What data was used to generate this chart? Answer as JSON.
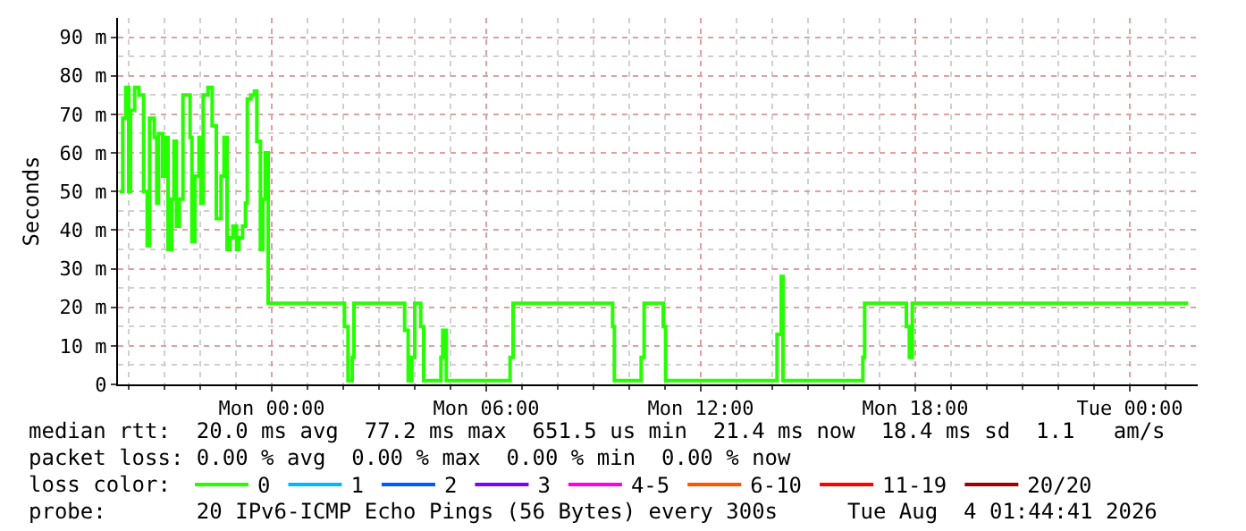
{
  "chart_data": {
    "type": "step",
    "ylabel": "Seconds",
    "x": [
      "2026-08-02T19:45",
      "2026-08-02T19:50",
      "2026-08-02T19:55",
      "2026-08-02T20:00",
      "2026-08-02T20:03",
      "2026-08-02T20:10",
      "2026-08-02T20:17",
      "2026-08-02T20:25",
      "2026-08-02T20:31",
      "2026-08-02T20:35",
      "2026-08-02T20:43",
      "2026-08-02T20:47",
      "2026-08-02T20:50",
      "2026-08-02T20:57",
      "2026-08-02T21:01",
      "2026-08-02T21:06",
      "2026-08-02T21:12",
      "2026-08-02T21:16",
      "2026-08-02T21:20",
      "2026-08-02T21:25",
      "2026-08-02T21:31",
      "2026-08-02T21:38",
      "2026-08-02T21:43",
      "2026-08-02T21:46",
      "2026-08-02T21:51",
      "2026-08-02T21:58",
      "2026-08-02T22:01",
      "2026-08-02T22:05",
      "2026-08-02T22:13",
      "2026-08-02T22:20",
      "2026-08-02T22:27",
      "2026-08-02T22:35",
      "2026-08-02T22:40",
      "2026-08-02T22:45",
      "2026-08-02T22:50",
      "2026-08-02T22:55",
      "2026-08-02T23:01",
      "2026-08-02T23:05",
      "2026-08-02T23:11",
      "2026-08-02T23:16",
      "2026-08-02T23:19",
      "2026-08-02T23:25",
      "2026-08-02T23:31",
      "2026-08-02T23:35",
      "2026-08-02T23:41",
      "2026-08-02T23:45",
      "2026-08-02T23:49",
      "2026-08-02T23:54",
      "2026-08-03T02:02",
      "2026-08-03T02:08",
      "2026-08-03T02:15",
      "2026-08-03T02:18",
      "2026-08-03T03:43",
      "2026-08-03T03:49",
      "2026-08-03T03:55",
      "2026-08-03T04:00",
      "2026-08-03T04:10",
      "2026-08-03T04:15",
      "2026-08-03T04:44",
      "2026-08-03T04:47",
      "2026-08-03T04:53",
      "2026-08-03T06:40",
      "2026-08-03T06:45",
      "2026-08-03T09:32",
      "2026-08-03T09:35",
      "2026-08-03T10:20",
      "2026-08-03T10:25",
      "2026-08-03T10:57",
      "2026-08-03T11:01",
      "2026-08-03T14:08",
      "2026-08-03T14:15",
      "2026-08-03T14:18",
      "2026-08-03T16:32",
      "2026-08-03T16:35",
      "2026-08-03T17:45",
      "2026-08-03T17:50",
      "2026-08-03T17:55",
      "2026-08-04T01:38"
    ],
    "series": [
      {
        "name": "0",
        "color": "#26ff00",
        "values": [
          50,
          69,
          77,
          50,
          71,
          77,
          75,
          50,
          36,
          69,
          64,
          47,
          65,
          54,
          64,
          35,
          48,
          63,
          41,
          48,
          75,
          75,
          64,
          37,
          54,
          64,
          47,
          75,
          77,
          67,
          43,
          54,
          64,
          35,
          38,
          41,
          35,
          38,
          41,
          47,
          74,
          75,
          76,
          63,
          35,
          48,
          60,
          21,
          15,
          1,
          7,
          21,
          14,
          1,
          7,
          21,
          15,
          1,
          7,
          14,
          1,
          7,
          21,
          15,
          1,
          7,
          21,
          15,
          1,
          13,
          28,
          1,
          7,
          21,
          15,
          7,
          21,
          21
        ]
      },
      {
        "name": "1",
        "color": "#00b8ff",
        "values": [
          null,
          null,
          null,
          null,
          null,
          null,
          null,
          null,
          null,
          null,
          null,
          null,
          null,
          null,
          null,
          null,
          null,
          null,
          null,
          null,
          null,
          null,
          null,
          null,
          null,
          null,
          null,
          null,
          null,
          null,
          null,
          null,
          null,
          null,
          null,
          null,
          null,
          null,
          null,
          null,
          null,
          null,
          null,
          null,
          null,
          null,
          null,
          null,
          null,
          null,
          null,
          null,
          null,
          null,
          null,
          null,
          null,
          null,
          null,
          null,
          null,
          null,
          null,
          null,
          null,
          null,
          null,
          null,
          null,
          null,
          null,
          null,
          null,
          null,
          null,
          null,
          null,
          null
        ]
      },
      {
        "name": "2",
        "color": "#0059ff",
        "values": [
          null,
          null,
          null,
          null,
          null,
          null,
          null,
          null,
          null,
          null,
          null,
          null,
          null,
          null,
          null,
          null,
          null,
          null,
          null,
          null,
          null,
          null,
          null,
          null,
          null,
          null,
          null,
          null,
          null,
          null,
          null,
          null,
          null,
          null,
          null,
          null,
          null,
          null,
          null,
          null,
          null,
          null,
          null,
          null,
          null,
          null,
          null,
          null,
          null,
          null,
          null,
          null,
          null,
          null,
          null,
          null,
          null,
          null,
          null,
          null,
          null,
          null,
          null,
          null,
          null,
          null,
          null,
          null,
          null,
          null,
          null,
          null,
          null,
          null,
          null,
          null,
          null,
          null
        ]
      },
      {
        "name": "3",
        "color": "#7e00ff",
        "values": [
          null,
          null,
          null,
          null,
          null,
          null,
          null,
          null,
          null,
          null,
          null,
          null,
          null,
          null,
          null,
          null,
          null,
          null,
          null,
          null,
          null,
          null,
          null,
          null,
          null,
          null,
          null,
          null,
          null,
          null,
          null,
          null,
          null,
          null,
          null,
          null,
          null,
          null,
          null,
          null,
          null,
          null,
          null,
          null,
          null,
          null,
          null,
          null,
          null,
          null,
          null,
          null,
          null,
          null,
          null,
          null,
          null,
          null,
          null,
          null,
          null,
          null,
          null,
          null,
          null,
          null,
          null,
          null,
          null,
          null,
          null,
          null,
          null,
          null,
          null,
          null,
          null,
          null
        ]
      },
      {
        "name": "4-5",
        "color": "#ff00ea",
        "values": [
          null,
          null,
          null,
          null,
          null,
          null,
          null,
          null,
          null,
          null,
          null,
          null,
          null,
          null,
          null,
          null,
          null,
          null,
          null,
          null,
          null,
          null,
          null,
          null,
          null,
          null,
          null,
          null,
          null,
          null,
          null,
          null,
          null,
          null,
          null,
          null,
          null,
          null,
          null,
          null,
          null,
          null,
          null,
          null,
          null,
          null,
          null,
          null,
          null,
          null,
          null,
          null,
          null,
          null,
          null,
          null,
          null,
          null,
          null,
          null,
          null,
          null,
          null,
          null,
          null,
          null,
          null,
          null,
          null,
          null,
          null,
          null,
          null,
          null,
          null,
          null,
          null,
          null
        ]
      },
      {
        "name": "6-10",
        "color": "#ff5500",
        "values": [
          null,
          null,
          null,
          null,
          null,
          null,
          null,
          null,
          null,
          null,
          null,
          null,
          null,
          null,
          null,
          null,
          null,
          null,
          null,
          null,
          null,
          null,
          null,
          null,
          null,
          null,
          null,
          null,
          null,
          null,
          null,
          null,
          null,
          null,
          null,
          null,
          null,
          null,
          null,
          null,
          null,
          null,
          null,
          null,
          null,
          null,
          null,
          null,
          null,
          null,
          null,
          null,
          null,
          null,
          null,
          null,
          null,
          null,
          null,
          null,
          null,
          null,
          null,
          null,
          null,
          null,
          null,
          null,
          null,
          null,
          null,
          null,
          null,
          null,
          null,
          null,
          null,
          null
        ]
      },
      {
        "name": "11-19",
        "color": "#ff0000",
        "values": [
          null,
          null,
          null,
          null,
          null,
          null,
          null,
          null,
          null,
          null,
          null,
          null,
          null,
          null,
          null,
          null,
          null,
          null,
          null,
          null,
          null,
          null,
          null,
          null,
          null,
          null,
          null,
          null,
          null,
          null,
          null,
          null,
          null,
          null,
          null,
          null,
          null,
          null,
          null,
          null,
          null,
          null,
          null,
          null,
          null,
          null,
          null,
          null,
          null,
          null,
          null,
          null,
          null,
          null,
          null,
          null,
          null,
          null,
          null,
          null,
          null,
          null,
          null,
          null,
          null,
          null,
          null,
          null,
          null,
          null,
          null,
          null,
          null,
          null,
          null,
          null,
          null,
          null
        ]
      },
      {
        "name": "20/20",
        "color": "#a10000",
        "values": [
          null,
          null,
          null,
          null,
          null,
          null,
          null,
          null,
          null,
          null,
          null,
          null,
          null,
          null,
          null,
          null,
          null,
          null,
          null,
          null,
          null,
          null,
          null,
          null,
          null,
          null,
          null,
          null,
          null,
          null,
          null,
          null,
          null,
          null,
          null,
          null,
          null,
          null,
          null,
          null,
          null,
          null,
          null,
          null,
          null,
          null,
          null,
          null,
          null,
          null,
          null,
          null,
          null,
          null,
          null,
          null,
          null,
          null,
          null,
          null,
          null,
          null,
          null,
          null,
          null,
          null,
          null,
          null,
          null,
          null,
          null,
          null,
          null,
          null,
          null,
          null,
          null,
          null
        ]
      }
    ],
    "xlim": [
      "2026-08-02T19:42",
      "2026-08-04T01:54"
    ],
    "xticks": [
      {
        "value": "2026-08-03T00:00",
        "label": "Mon 00:00"
      },
      {
        "value": "2026-08-03T06:00",
        "label": "Mon 06:00"
      },
      {
        "value": "2026-08-03T12:00",
        "label": "Mon 12:00"
      },
      {
        "value": "2026-08-03T18:00",
        "label": "Mon 18:00"
      },
      {
        "value": "2026-08-04T00:00",
        "label": "Tue 00:00"
      }
    ],
    "ylim": [
      0,
      95
    ],
    "yticks": [
      0,
      {
        "value": 10,
        "label": "10 m"
      },
      {
        "value": 20,
        "label": "20 m"
      },
      {
        "value": 30,
        "label": "30 m"
      },
      {
        "value": 40,
        "label": "40 m"
      },
      {
        "value": 50,
        "label": "50 m"
      },
      {
        "value": 60,
        "label": "60 m"
      },
      {
        "value": 70,
        "label": "70 m"
      },
      {
        "value": 80,
        "label": "80 m"
      },
      {
        "value": 90,
        "label": "90 m"
      }
    ],
    "grid": true,
    "legend": "bottom",
    "line_style": "solid",
    "annotations": [
      "median rtt:  20.0 ms avg  77.2 ms max  651.5 us min  21.4 ms now  18.4 ms sd  1.1   am/s",
      "packet loss: 0.00 % avg  0.00 % max  0.00 % min  0.00 % now",
      "loss color:",
      "probe:       20 IPv6-ICMP Echo Pings (56 Bytes) every 300s",
      "Tue Aug  4 01:44:41 2026"
    ]
  }
}
